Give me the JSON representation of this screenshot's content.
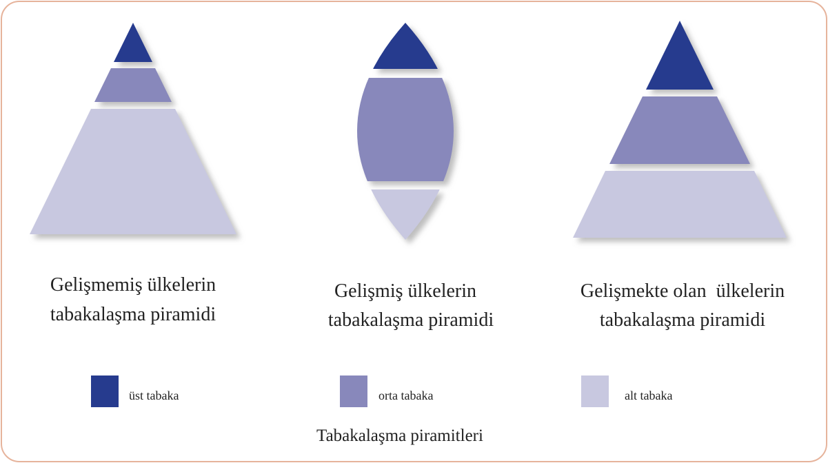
{
  "diagrams": [
    {
      "label_lines": [
        "Gelişmemiş ülkelerin",
        "tabakalaşma piramidi"
      ]
    },
    {
      "label_lines": [
        "Gelişmiş ülkelerin",
        "tabakalaşma piramidi"
      ]
    },
    {
      "label_lines": [
        "Gelişmekte olan  ülkelerin",
        "tabakalaşma piramidi"
      ]
    }
  ],
  "legend": [
    {
      "label": "üst tabaka",
      "color": "#263b8e"
    },
    {
      "label": "orta tabaka",
      "color": "#8888bb"
    },
    {
      "label": "alt tabaka",
      "color": "#c8c8e0"
    }
  ],
  "caption": "Tabakalaşma piramitleri"
}
